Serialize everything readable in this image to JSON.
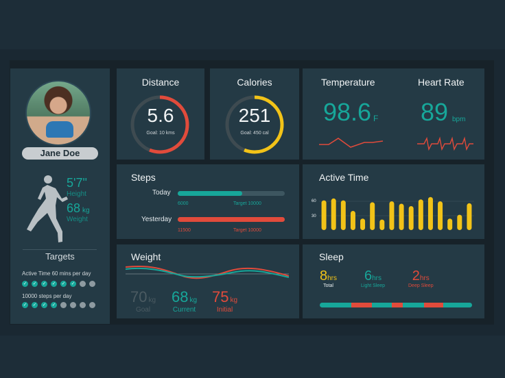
{
  "profile": {
    "name": "Jane Doe",
    "height_value": "5'7\"",
    "height_caption": "Height",
    "weight_value": "68",
    "weight_unit": "kg",
    "weight_caption": "Weight",
    "targets_title": "Targets",
    "targets": [
      {
        "label": "Active Time 60 mins per day",
        "completed": 6,
        "total": 8
      },
      {
        "label": "10000 steps per day",
        "completed": 4,
        "total": 8
      }
    ]
  },
  "distance": {
    "title": "Distance",
    "value": "5.6",
    "goal": "Goal: 10 kms",
    "progress": 0.56
  },
  "calories": {
    "title": "Calories",
    "value": "251",
    "goal": "Goal: 450 cal",
    "progress": 0.56
  },
  "temperature": {
    "title": "Temperature",
    "value": "98.6",
    "unit": "F"
  },
  "heart_rate": {
    "title": "Heart Rate",
    "value": "89",
    "unit": "bpm"
  },
  "steps": {
    "title": "Steps",
    "rows": [
      {
        "label": "Today",
        "value": "6000",
        "target": "Target 10000",
        "progress": 0.6
      },
      {
        "label": "Yesterday",
        "value": "11500",
        "target": "Target 10000",
        "progress": 1.0
      }
    ]
  },
  "active_time": {
    "title": "Active Time",
    "ticks": [
      "60",
      "30"
    ]
  },
  "weight": {
    "title": "Weight",
    "goal_value": "70",
    "goal_unit": "kg",
    "goal_caption": "Goal",
    "current_value": "68",
    "current_unit": "kg",
    "current_caption": "Current",
    "initial_value": "75",
    "initial_unit": "kg",
    "initial_caption": "Initial"
  },
  "sleep": {
    "title": "Sleep",
    "total_value": "8",
    "total_unit": "hrs",
    "total_caption": "Total",
    "light_value": "6",
    "light_unit": "hrs",
    "light_caption": "Light Sleep",
    "deep_value": "2",
    "deep_unit": "hrs",
    "deep_caption": "Deep Sleep"
  },
  "chart_data": {
    "type": "bar",
    "title": "Active Time",
    "values": [
      62,
      66,
      62,
      40,
      24,
      58,
      22,
      60,
      55,
      50,
      64,
      69,
      60,
      24,
      32,
      56
    ],
    "ylim": [
      0,
      80
    ],
    "grid": true
  },
  "colors": {
    "accent_teal": "#17a79a",
    "accent_red": "#e14b3b",
    "accent_yellow": "#f2c318"
  }
}
